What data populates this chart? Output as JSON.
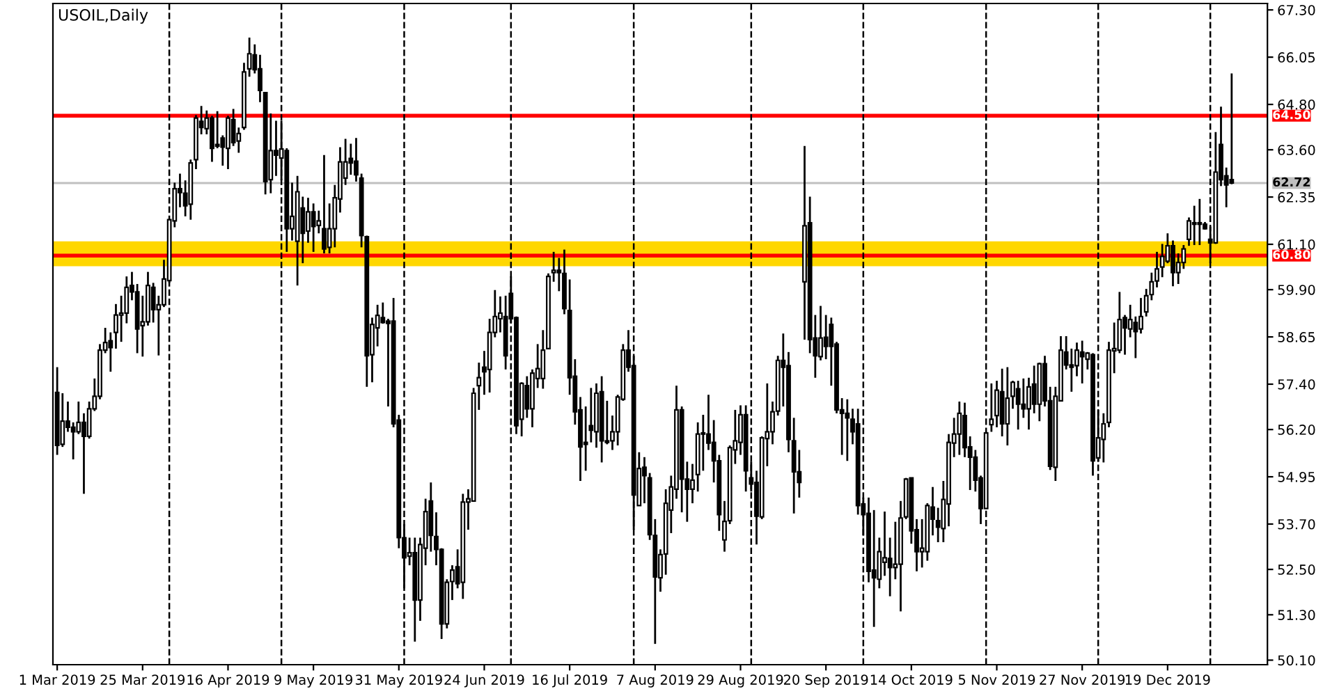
{
  "chart_data": {
    "type": "candlestick",
    "title": "USOIL,Daily",
    "categories": [
      "1 Mar 2019",
      null,
      null,
      null,
      null,
      null,
      null,
      null,
      null,
      null,
      null,
      null,
      null,
      null,
      null,
      null,
      "25 Mar 2019",
      null,
      null,
      null,
      null,
      null,
      null,
      null,
      null,
      null,
      null,
      null,
      null,
      null,
      null,
      null,
      "16 Apr 2019",
      null,
      null,
      null,
      null,
      null,
      null,
      null,
      null,
      null,
      null,
      null,
      null,
      null,
      null,
      null,
      "9 May 2019",
      null,
      null,
      null,
      null,
      null,
      null,
      null,
      null,
      null,
      null,
      null,
      null,
      null,
      null,
      null,
      "31 May 2019",
      null,
      null,
      null,
      null,
      null,
      null,
      null,
      null,
      null,
      null,
      null,
      null,
      null,
      null,
      null,
      "24 Jun 2019",
      null,
      null,
      null,
      null,
      null,
      null,
      null,
      null,
      null,
      null,
      null,
      null,
      null,
      null,
      null,
      "16 Jul 2019",
      null,
      null,
      null,
      null,
      null,
      null,
      null,
      null,
      null,
      null,
      null,
      null,
      null,
      null,
      null,
      "7 Aug 2019",
      null,
      null,
      null,
      null,
      null,
      null,
      null,
      null,
      null,
      null,
      null,
      null,
      null,
      null,
      null,
      "29 Aug 2019",
      null,
      null,
      null,
      null,
      null,
      null,
      null,
      null,
      null,
      null,
      null,
      null,
      null,
      null,
      null,
      "20 Sep 2019",
      null,
      null,
      null,
      null,
      null,
      null,
      null,
      null,
      null,
      null,
      null,
      null,
      null,
      null,
      null,
      "14 Oct 2019",
      null,
      null,
      null,
      null,
      null,
      null,
      null,
      null,
      null,
      null,
      null,
      null,
      null,
      null,
      null,
      "5 Nov 2019",
      null,
      null,
      null,
      null,
      null,
      null,
      null,
      null,
      null,
      null,
      null,
      null,
      null,
      null,
      null,
      "27 Nov 2019",
      null,
      null,
      null,
      null,
      null,
      null,
      null,
      null,
      null,
      null,
      null,
      null,
      null,
      null,
      null,
      "19 Dec 2019",
      null,
      null,
      null,
      null,
      null,
      null,
      null,
      null,
      null,
      null,
      null,
      null
    ],
    "ohlc": [
      [
        57.18,
        57.85,
        55.53,
        55.78
      ],
      [
        55.81,
        57.16,
        55.74,
        56.42
      ],
      [
        56.42,
        56.94,
        56.14,
        56.26
      ],
      [
        56.26,
        56.39,
        55.41,
        56.14
      ],
      [
        56.14,
        56.94,
        56.08,
        56.39
      ],
      [
        56.39,
        56.63,
        54.5,
        56.02
      ],
      [
        56.02,
        56.94,
        55.96,
        56.75
      ],
      [
        56.75,
        57.55,
        56.69,
        57.08
      ],
      [
        57.08,
        58.46,
        57.0,
        58.3
      ],
      [
        58.3,
        58.89,
        58.22,
        58.5
      ],
      [
        58.55,
        58.77,
        57.73,
        58.37
      ],
      [
        58.77,
        59.52,
        58.34,
        59.23
      ],
      [
        59.23,
        59.74,
        58.52,
        59.28
      ],
      [
        59.28,
        60.25,
        59.01,
        59.96
      ],
      [
        60.01,
        60.37,
        59.62,
        59.84
      ],
      [
        59.84,
        60.05,
        58.22,
        58.86
      ],
      [
        58.95,
        59.74,
        58.13,
        59.05
      ],
      [
        59.05,
        60.37,
        58.95,
        60.01
      ],
      [
        59.96,
        60.08,
        59.03,
        59.37
      ],
      [
        59.37,
        59.74,
        58.16,
        59.5
      ],
      [
        59.5,
        60.69,
        59.44,
        60.18
      ],
      [
        60.14,
        61.75,
        60.08,
        61.75
      ],
      [
        61.72,
        62.73,
        61.55,
        62.57
      ],
      [
        62.57,
        62.97,
        62.08,
        62.47
      ],
      [
        62.45,
        62.79,
        61.84,
        62.12
      ],
      [
        62.16,
        63.34,
        61.75,
        63.25
      ],
      [
        63.34,
        64.52,
        63.09,
        64.44
      ],
      [
        64.35,
        64.76,
        64.01,
        64.19
      ],
      [
        64.16,
        64.64,
        64.01,
        64.44
      ],
      [
        64.44,
        64.5,
        63.28,
        63.64
      ],
      [
        63.74,
        64.62,
        63.64,
        63.7
      ],
      [
        63.91,
        63.98,
        63.18,
        63.67
      ],
      [
        63.64,
        64.5,
        63.09,
        64.44
      ],
      [
        64.4,
        64.68,
        63.7,
        63.79
      ],
      [
        63.83,
        64.19,
        63.52,
        64.03
      ],
      [
        64.19,
        65.9,
        64.13,
        65.66
      ],
      [
        65.74,
        66.57,
        65.53,
        66.14
      ],
      [
        66.11,
        66.39,
        65.62,
        65.72
      ],
      [
        65.74,
        66.11,
        64.86,
        65.17
      ],
      [
        65.11,
        65.11,
        62.42,
        62.76
      ],
      [
        62.81,
        64.56,
        62.45,
        63.58
      ],
      [
        63.58,
        64.37,
        62.91,
        63.46
      ],
      [
        63.38,
        64.37,
        62.79,
        63.62
      ],
      [
        63.58,
        63.64,
        60.9,
        61.51
      ],
      [
        61.51,
        62.73,
        61.2,
        61.84
      ],
      [
        61.18,
        62.91,
        60.01,
        62.49
      ],
      [
        62.06,
        62.36,
        60.6,
        61.39
      ],
      [
        61.45,
        62.33,
        61.14,
        61.96
      ],
      [
        61.96,
        62.18,
        60.9,
        61.57
      ],
      [
        61.6,
        61.99,
        61.39,
        61.72
      ],
      [
        61.51,
        63.46,
        60.86,
        60.98
      ],
      [
        61.02,
        62.18,
        60.86,
        61.51
      ],
      [
        61.51,
        62.67,
        61.02,
        62.33
      ],
      [
        62.3,
        63.67,
        61.94,
        63.28
      ],
      [
        62.85,
        63.89,
        62.67,
        63.28
      ],
      [
        63.37,
        63.76,
        62.94,
        63.25
      ],
      [
        63.3,
        63.91,
        62.76,
        62.94
      ],
      [
        62.85,
        62.97,
        61.02,
        61.33
      ],
      [
        61.3,
        61.33,
        57.33,
        58.15
      ],
      [
        58.18,
        59.16,
        57.45,
        58.98
      ],
      [
        58.89,
        59.5,
        58.4,
        59.22
      ],
      [
        59.16,
        59.56,
        59.0,
        59.03
      ],
      [
        59.07,
        59.13,
        56.81,
        59.01
      ],
      [
        59.07,
        59.68,
        56.26,
        56.35
      ],
      [
        56.45,
        56.59,
        53.06,
        53.34
      ],
      [
        53.34,
        53.7,
        52.0,
        52.81
      ],
      [
        52.85,
        53.34,
        52.61,
        52.94
      ],
      [
        52.94,
        53.34,
        50.59,
        51.69
      ],
      [
        51.69,
        53.34,
        51.14,
        53.16
      ],
      [
        53.06,
        54.37,
        52.61,
        54.03
      ],
      [
        54.31,
        54.8,
        52.97,
        53.4
      ],
      [
        53.37,
        54.01,
        52.61,
        53.03
      ],
      [
        53.03,
        53.06,
        50.66,
        51.06
      ],
      [
        51.06,
        52.24,
        50.94,
        52.16
      ],
      [
        52.18,
        52.61,
        51.69,
        52.48
      ],
      [
        52.57,
        53.03,
        52.0,
        52.12
      ],
      [
        52.16,
        54.5,
        51.72,
        54.28
      ],
      [
        54.28,
        54.62,
        53.55,
        54.37
      ],
      [
        54.31,
        57.3,
        54.31,
        57.16
      ],
      [
        57.36,
        57.97,
        56.72,
        57.57
      ],
      [
        57.85,
        58.28,
        57.12,
        57.73
      ],
      [
        57.79,
        59.13,
        57.18,
        58.77
      ],
      [
        58.77,
        59.89,
        58.64,
        59.19
      ],
      [
        59.13,
        59.72,
        58.77,
        59.28
      ],
      [
        59.19,
        59.74,
        57.79,
        58.15
      ],
      [
        59.8,
        60.25,
        59.01,
        59.13
      ],
      [
        59.16,
        59.19,
        56.08,
        56.3
      ],
      [
        56.47,
        57.45,
        56.02,
        57.42
      ],
      [
        57.36,
        57.61,
        56.51,
        56.75
      ],
      [
        56.75,
        57.79,
        56.26,
        57.69
      ],
      [
        57.55,
        58.46,
        57.3,
        57.81
      ],
      [
        57.55,
        58.83,
        57.28,
        58.3
      ],
      [
        58.34,
        60.33,
        58.34,
        60.25
      ],
      [
        60.35,
        60.9,
        60.11,
        60.41
      ],
      [
        60.41,
        60.74,
        59.86,
        60.35
      ],
      [
        60.33,
        60.96,
        59.25,
        59.4
      ],
      [
        59.35,
        60.17,
        57.12,
        57.57
      ],
      [
        57.61,
        58.06,
        56.33,
        56.67
      ],
      [
        56.72,
        57.06,
        54.84,
        55.74
      ],
      [
        55.86,
        56.81,
        55.11,
        55.81
      ],
      [
        56.3,
        57.3,
        55.86,
        56.18
      ],
      [
        56.14,
        57.42,
        55.72,
        57.16
      ],
      [
        57.2,
        57.61,
        55.33,
        55.9
      ],
      [
        55.9,
        56.96,
        55.81,
        55.86
      ],
      [
        55.9,
        56.57,
        55.66,
        56.14
      ],
      [
        56.14,
        57.12,
        55.78,
        57.06
      ],
      [
        57.0,
        58.46,
        56.96,
        58.3
      ],
      [
        58.3,
        58.83,
        57.73,
        57.85
      ],
      [
        57.89,
        58.15,
        53.55,
        54.47
      ],
      [
        54.19,
        55.6,
        54.19,
        55.17
      ],
      [
        55.2,
        55.47,
        54.25,
        54.98
      ],
      [
        54.92,
        55.05,
        53.28,
        53.42
      ],
      [
        53.4,
        53.83,
        50.53,
        52.3
      ],
      [
        52.28,
        53.03,
        51.91,
        52.89
      ],
      [
        52.91,
        54.62,
        52.36,
        54.25
      ],
      [
        54.07,
        54.98,
        53.46,
        54.68
      ],
      [
        54.62,
        57.36,
        54.37,
        56.72
      ],
      [
        56.72,
        56.81,
        54.01,
        54.89
      ],
      [
        54.89,
        55.35,
        53.76,
        54.62
      ],
      [
        54.62,
        55.29,
        54.25,
        54.86
      ],
      [
        55.01,
        56.39,
        54.56,
        56.08
      ],
      [
        56.08,
        56.59,
        55.11,
        56.11
      ],
      [
        56.08,
        57.12,
        55.66,
        55.84
      ],
      [
        55.86,
        56.45,
        54.8,
        55.37
      ],
      [
        55.37,
        55.53,
        53.52,
        53.95
      ],
      [
        53.28,
        54.31,
        52.97,
        53.77
      ],
      [
        53.79,
        55.78,
        53.7,
        55.72
      ],
      [
        55.66,
        56.72,
        55.29,
        55.9
      ],
      [
        55.86,
        56.84,
        55.53,
        56.59
      ],
      [
        56.59,
        56.84,
        54.56,
        55.11
      ],
      [
        54.92,
        55.35,
        54.56,
        54.76
      ],
      [
        54.8,
        55.11,
        53.16,
        53.91
      ],
      [
        53.89,
        56.02,
        53.83,
        55.98
      ],
      [
        55.96,
        57.42,
        55.23,
        56.14
      ],
      [
        56.14,
        56.94,
        55.81,
        56.67
      ],
      [
        56.69,
        58.15,
        56.57,
        58.03
      ],
      [
        58.03,
        58.74,
        56.81,
        57.85
      ],
      [
        57.89,
        58.25,
        55.6,
        55.94
      ],
      [
        55.9,
        56.51,
        53.98,
        55.08
      ],
      [
        55.08,
        55.66,
        54.4,
        54.8
      ],
      [
        60.11,
        63.7,
        58.58,
        61.59
      ],
      [
        61.67,
        62.36,
        58.22,
        58.58
      ],
      [
        58.62,
        59.23,
        57.57,
        58.15
      ],
      [
        58.13,
        59.47,
        58.03,
        58.62
      ],
      [
        58.64,
        59.23,
        58.06,
        58.4
      ],
      [
        58.98,
        59.16,
        57.36,
        58.4
      ],
      [
        58.46,
        58.52,
        56.63,
        56.72
      ],
      [
        56.72,
        57.03,
        55.53,
        56.63
      ],
      [
        56.63,
        57.0,
        55.37,
        56.51
      ],
      [
        56.47,
        56.75,
        55.81,
        56.14
      ],
      [
        56.35,
        56.75,
        53.95,
        54.19
      ],
      [
        54.23,
        54.4,
        53.4,
        53.95
      ],
      [
        53.98,
        54.4,
        52.16,
        52.45
      ],
      [
        52.48,
        54.07,
        50.98,
        52.28
      ],
      [
        52.24,
        53.34,
        52.0,
        52.97
      ],
      [
        52.69,
        54.03,
        52.33,
        52.81
      ],
      [
        52.79,
        53.34,
        51.79,
        52.55
      ],
      [
        52.55,
        53.76,
        52.24,
        52.64
      ],
      [
        52.64,
        54.31,
        51.39,
        53.86
      ],
      [
        53.89,
        54.92,
        53.83,
        54.89
      ],
      [
        54.92,
        54.92,
        53.18,
        53.52
      ],
      [
        53.55,
        53.83,
        52.45,
        52.97
      ],
      [
        52.97,
        53.83,
        52.55,
        53.06
      ],
      [
        52.97,
        54.25,
        52.73,
        54.19
      ],
      [
        54.15,
        54.68,
        53.4,
        53.83
      ],
      [
        53.79,
        54.13,
        53.22,
        53.62
      ],
      [
        53.58,
        54.84,
        53.22,
        54.35
      ],
      [
        54.23,
        56.08,
        53.64,
        55.86
      ],
      [
        55.84,
        56.51,
        55.47,
        56.08
      ],
      [
        56.08,
        56.94,
        55.53,
        56.63
      ],
      [
        56.57,
        56.91,
        55.47,
        55.72
      ],
      [
        55.74,
        56.02,
        54.6,
        55.47
      ],
      [
        55.47,
        55.66,
        54.56,
        54.86
      ],
      [
        54.92,
        54.98,
        53.7,
        54.11
      ],
      [
        54.11,
        56.14,
        54.11,
        56.11
      ],
      [
        56.33,
        57.42,
        56.14,
        56.47
      ],
      [
        56.57,
        57.49,
        56.26,
        57.24
      ],
      [
        57.2,
        57.81,
        56.02,
        56.35
      ],
      [
        56.35,
        57.85,
        55.78,
        57.03
      ],
      [
        57.08,
        57.49,
        56.75,
        57.45
      ],
      [
        57.28,
        57.49,
        56.2,
        56.87
      ],
      [
        56.87,
        57.55,
        56.51,
        56.75
      ],
      [
        56.75,
        57.57,
        56.2,
        57.33
      ],
      [
        57.4,
        57.89,
        56.63,
        56.87
      ],
      [
        56.87,
        57.97,
        56.42,
        57.94
      ],
      [
        57.94,
        58.15,
        56.81,
        56.96
      ],
      [
        56.96,
        57.33,
        55.13,
        55.23
      ],
      [
        55.2,
        57.33,
        54.84,
        57.08
      ],
      [
        56.96,
        58.67,
        56.94,
        58.3
      ],
      [
        58.25,
        58.67,
        57.79,
        57.91
      ],
      [
        57.91,
        58.34,
        57.2,
        57.85
      ],
      [
        57.89,
        58.5,
        57.61,
        58.3
      ],
      [
        58.25,
        58.55,
        57.42,
        58.13
      ],
      [
        58.06,
        58.25,
        57.79,
        58.22
      ],
      [
        58.18,
        58.22,
        54.98,
        55.37
      ],
      [
        55.45,
        56.72,
        55.35,
        55.98
      ],
      [
        55.94,
        56.63,
        55.33,
        56.35
      ],
      [
        56.39,
        58.52,
        56.26,
        58.3
      ],
      [
        58.28,
        59.03,
        57.69,
        58.34
      ],
      [
        58.3,
        59.84,
        58.22,
        59.11
      ],
      [
        59.16,
        59.23,
        58.18,
        58.89
      ],
      [
        58.86,
        59.5,
        58.64,
        59.11
      ],
      [
        59.03,
        59.19,
        58.09,
        58.79
      ],
      [
        58.86,
        59.68,
        58.74,
        59.19
      ],
      [
        59.31,
        59.92,
        59.19,
        59.74
      ],
      [
        59.77,
        60.35,
        59.62,
        60.11
      ],
      [
        60.13,
        60.9,
        59.96,
        60.45
      ],
      [
        60.5,
        61.11,
        60.23,
        60.78
      ],
      [
        60.65,
        61.39,
        60.6,
        61.06
      ],
      [
        61.06,
        61.2,
        59.99,
        60.35
      ],
      [
        60.35,
        60.86,
        60.05,
        60.62
      ],
      [
        60.62,
        61.08,
        60.45,
        60.98
      ],
      [
        61.23,
        61.81,
        61.06,
        61.72
      ],
      [
        61.67,
        62.12,
        61.08,
        61.63
      ],
      [
        61.67,
        62.3,
        61.08,
        61.63
      ],
      [
        61.63,
        61.69,
        61.49,
        61.51
      ],
      [
        61.23,
        61.57,
        60.6,
        61.14
      ],
      [
        61.14,
        64.07,
        61.11,
        63.01
      ],
      [
        63.74,
        64.74,
        62.64,
        62.81
      ],
      [
        62.91,
        63.13,
        62.08,
        62.67
      ],
      [
        62.81,
        65.62,
        62.69,
        62.72
      ]
    ],
    "ylim": [
      49.98,
      67.47
    ],
    "yticks": [
      {
        "value": 67.3,
        "label": "67.30"
      },
      66.05,
      {
        "value": 64.8,
        "label": "64.80"
      },
      {
        "value": 63.6,
        "label": "63.60"
      },
      62.35,
      {
        "value": 61.1,
        "label": "61.10"
      },
      {
        "value": 59.9,
        "label": "59.90"
      },
      58.65,
      {
        "value": 57.4,
        "label": "57.40"
      },
      {
        "value": 56.2,
        "label": "56.20"
      },
      54.95,
      {
        "value": 53.7,
        "label": "53.70"
      },
      {
        "value": 52.5,
        "label": "52.50"
      },
      {
        "value": 51.3,
        "label": "51.30"
      },
      {
        "value": 50.1,
        "label": "50.10"
      }
    ],
    "bands": [
      {
        "axis": "y",
        "from": 60.52,
        "to": 61.18,
        "color": "#ffd700"
      }
    ],
    "ref_lines": [
      {
        "axis": "y",
        "value": 64.5,
        "label": "64.50",
        "color": "#ff0000",
        "line_style": "solid"
      },
      {
        "axis": "y",
        "value": 60.8,
        "label": "60.80",
        "color": "#ff0000",
        "line_style": "solid"
      },
      {
        "axis": "y",
        "value": 62.72,
        "label": "62.72",
        "color": "#c0c0c0",
        "line_style": "solid"
      }
    ]
  }
}
